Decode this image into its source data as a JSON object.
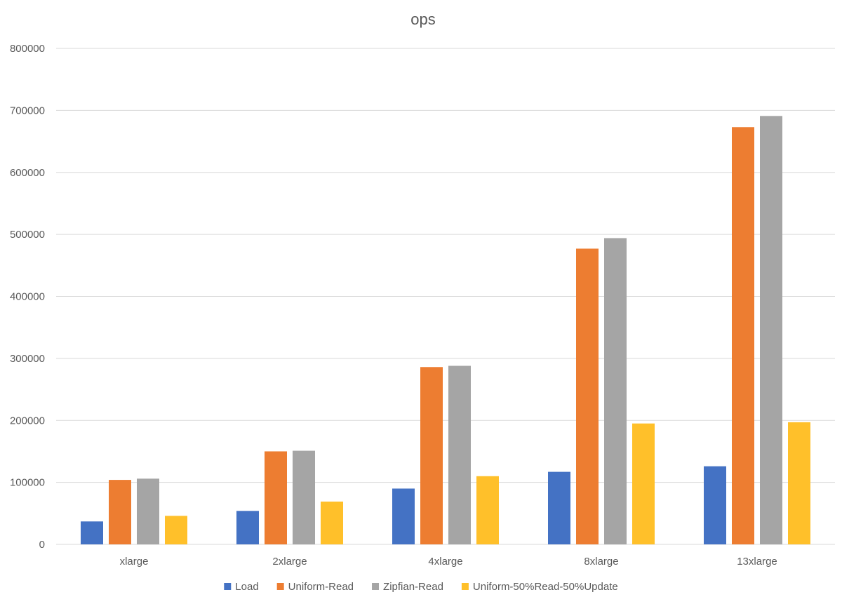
{
  "chart_data": {
    "type": "bar",
    "title": "ops",
    "xlabel": "",
    "ylabel": "",
    "categories": [
      "xlarge",
      "2xlarge",
      "4xlarge",
      "8xlarge",
      "13xlarge"
    ],
    "series": [
      {
        "name": "Load",
        "color": "#4472C4",
        "values": [
          37000,
          54000,
          90000,
          117000,
          126000
        ]
      },
      {
        "name": "Uniform-Read",
        "color": "#ED7D31",
        "values": [
          104000,
          150000,
          286000,
          477000,
          673000
        ]
      },
      {
        "name": "Zipfian-Read",
        "color": "#A5A5A5",
        "values": [
          106000,
          151000,
          288000,
          494000,
          691000
        ]
      },
      {
        "name": "Uniform-50%Read-50%Update",
        "color": "#FFC02A",
        "values": [
          46000,
          69000,
          110000,
          195000,
          197000
        ]
      }
    ],
    "ylim": [
      0,
      800000
    ],
    "yticks": [
      0,
      100000,
      200000,
      300000,
      400000,
      500000,
      600000,
      700000,
      800000
    ],
    "ytick_labels": [
      "0",
      "100000",
      "200000",
      "300000",
      "400000",
      "500000",
      "600000",
      "700000",
      "800000"
    ],
    "grid": true,
    "legend_position": "bottom"
  }
}
